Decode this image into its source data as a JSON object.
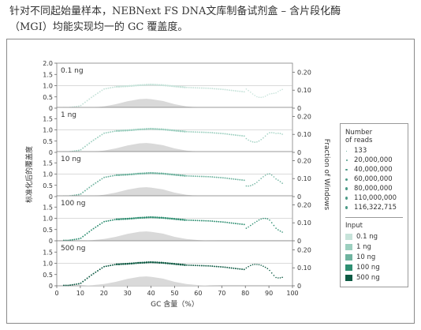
{
  "caption": {
    "line1": "针对不同起始量样本，NEBNext FS DNA文库制备试剂盒 – 含片段化酶",
    "line2": "（MGI）均能实现均一的 GC 覆盖度。"
  },
  "chart_data": {
    "type": "scatter",
    "xlabel": "GC 含量（%）",
    "ylabel_left": "标准化后的覆盖度",
    "ylabel_right": "Fraction of Windows",
    "x_ticks": [
      0,
      10,
      20,
      30,
      40,
      50,
      60,
      70,
      80,
      90,
      100
    ],
    "xlim": [
      0,
      100
    ],
    "left_ticks_first_panel": [
      "2.0",
      "1.5",
      "1.0",
      "0.5",
      "0"
    ],
    "left_ticks": [
      "1.5",
      "1.0",
      "0.5",
      "0"
    ],
    "right_ticks": [
      "0.20",
      "0.10",
      "0"
    ],
    "ylim_left": [
      0,
      2.0
    ],
    "ylim_right": [
      0,
      0.25
    ],
    "gc_distribution": {
      "x": [
        10,
        15,
        20,
        25,
        30,
        35,
        38,
        40,
        45,
        50,
        55,
        60,
        65,
        70
      ],
      "value": [
        0,
        0.003,
        0.01,
        0.022,
        0.038,
        0.05,
        0.052,
        0.05,
        0.04,
        0.022,
        0.01,
        0.004,
        0.001,
        0
      ]
    },
    "coverage_profile": {
      "x": [
        5,
        10,
        15,
        20,
        25,
        30,
        35,
        40,
        45,
        50,
        55,
        60,
        65,
        70,
        75,
        80,
        85,
        90,
        93
      ],
      "value": [
        0.02,
        0.1,
        0.5,
        0.85,
        0.95,
        0.98,
        1.02,
        1.05,
        1.02,
        0.97,
        0.92,
        0.9,
        0.88,
        0.84,
        0.78,
        0.72,
        0.7,
        0.78,
        0.6
      ]
    },
    "panels": [
      {
        "label": "0.1 ng",
        "color": "#c7e3da"
      },
      {
        "label": "1 ng",
        "color": "#9ccfbf"
      },
      {
        "label": "10 ng",
        "color": "#6fb39f"
      },
      {
        "label": "100 ng",
        "color": "#2f8f72"
      },
      {
        "label": "500 ng",
        "color": "#0d5a43"
      }
    ],
    "gc_fill_color": "#d9d9d9",
    "gridline_color": "#b5b5b5"
  },
  "legend": {
    "reads_title": [
      "Number",
      "of reads"
    ],
    "reads": [
      "133",
      "20,000,000",
      "40,000,000",
      "60,000,000",
      "80,000,000",
      "110,000,000",
      "116,322,715"
    ],
    "input_title": "Input",
    "inputs": [
      {
        "label": "0.1 ng",
        "color": "#c7e3da"
      },
      {
        "label": "1 ng",
        "color": "#9ccfbf"
      },
      {
        "label": "10 ng",
        "color": "#6fb39f"
      },
      {
        "label": "100 ng",
        "color": "#2f8f72"
      },
      {
        "label": "500 ng",
        "color": "#0d5a43"
      }
    ]
  }
}
